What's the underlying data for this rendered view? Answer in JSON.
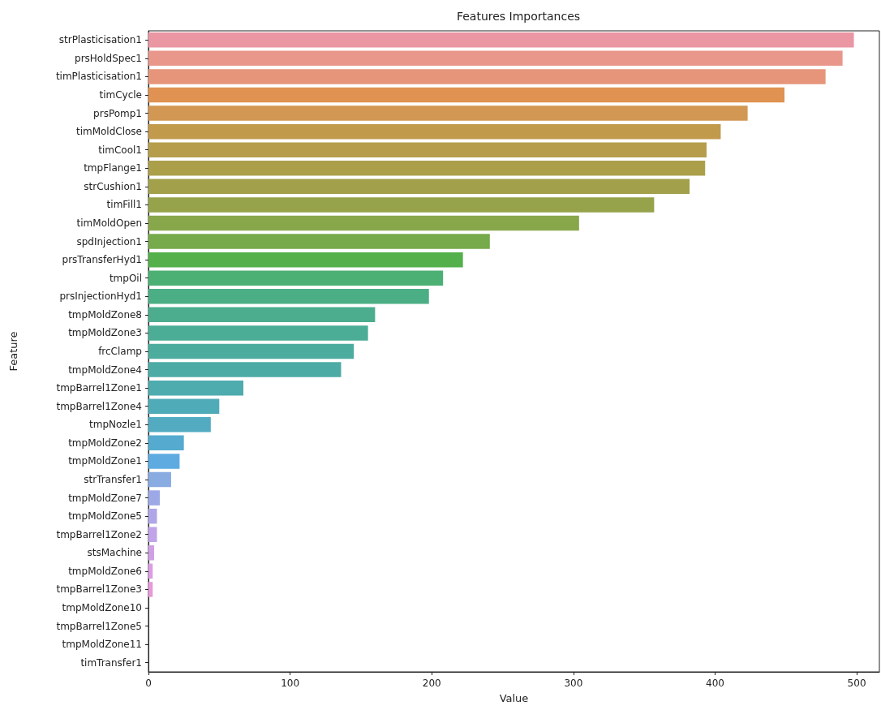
{
  "chart_data": {
    "type": "bar",
    "orientation": "horizontal",
    "title": "Features Importances",
    "xlabel": "Value",
    "ylabel": "Feature",
    "categories": [
      "strPlasticisation1",
      "prsHoldSpec1",
      "timPlasticisation1",
      "timCycle",
      "prsPomp1",
      "timMoldClose",
      "timCool1",
      "tmpFlange1",
      "strCushion1",
      "timFill1",
      "timMoldOpen",
      "spdInjection1",
      "prsTransferHyd1",
      "tmpOil",
      "prsInjectionHyd1",
      "tmpMoldZone8",
      "tmpMoldZone3",
      "frcClamp",
      "tmpMoldZone4",
      "tmpBarrel1Zone1",
      "tmpBarrel1Zone4",
      "tmpNozle1",
      "tmpMoldZone2",
      "tmpMoldZone1",
      "strTransfer1",
      "tmpMoldZone7",
      "tmpMoldZone5",
      "tmpBarrel1Zone2",
      "stsMachine",
      "tmpMoldZone6",
      "tmpBarrel1Zone3",
      "tmpMoldZone10",
      "tmpBarrel1Zone5",
      "tmpMoldZone11",
      "timTransfer1"
    ],
    "values": [
      498,
      490,
      478,
      449,
      423,
      404,
      394,
      393,
      382,
      357,
      304,
      241,
      222,
      208,
      198,
      160,
      155,
      145,
      136,
      67,
      50,
      44,
      25,
      22,
      16,
      8,
      6,
      6,
      4,
      3,
      3,
      0,
      0,
      0,
      0
    ],
    "colors": [
      "#ea96a3",
      "#e9968b",
      "#e6957a",
      "#df9251",
      "#d29752",
      "#c29a4c",
      "#b59d4c",
      "#ab9f4a",
      "#a2a04a",
      "#96a34b",
      "#88a74b",
      "#76aa4a",
      "#53b04a",
      "#4caf74",
      "#4cae85",
      "#4cad8e",
      "#4cad96",
      "#4cac9e",
      "#4caba5",
      "#4eabae",
      "#50abb8",
      "#52abc1",
      "#55abcf",
      "#5eabe2",
      "#88abe2",
      "#9da8e6",
      "#afa6e8",
      "#c0a3e8",
      "#d0a0e6",
      "#dd9ce4",
      "#e799d9",
      "#e99ac5",
      "#ea98b5",
      "#ea96a8",
      "#ea96a3"
    ],
    "xlim": [
      0,
      516
    ],
    "xticks": [
      0,
      100,
      200,
      300,
      400,
      500
    ]
  }
}
